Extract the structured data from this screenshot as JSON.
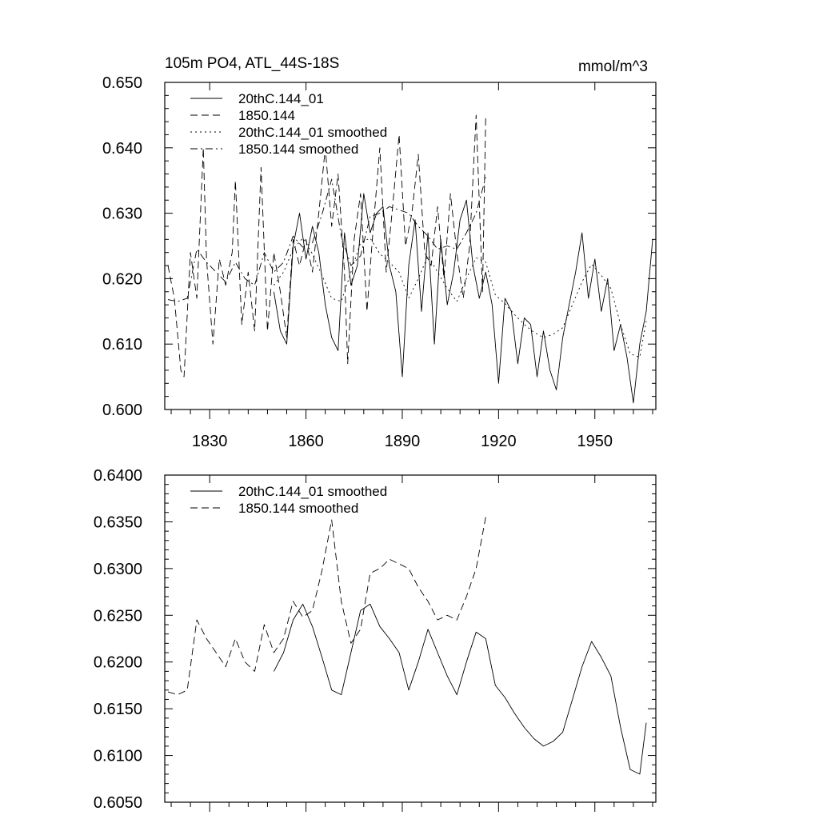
{
  "chart_data": [
    {
      "type": "line",
      "title": "105m PO4, ATL_44S-18S",
      "units_label": "mmol/m^3",
      "xlabel": "",
      "ylabel": "",
      "xlim": [
        1816,
        1969
      ],
      "ylim": [
        0.6,
        0.65
      ],
      "x_ticks": [
        1830,
        1860,
        1890,
        1920,
        1950
      ],
      "y_ticks": [
        0.6,
        0.61,
        0.62,
        0.63,
        0.64,
        0.65
      ],
      "y_tick_labels": [
        "0.600",
        "0.610",
        "0.620",
        "0.630",
        "0.640",
        "0.650"
      ],
      "legend": [
        "20thC.144_01",
        "1850.144",
        "20thC.144_01 smoothed",
        "1850.144 smoothed"
      ],
      "legend_position": "top-left",
      "series": [
        {
          "name": "20thC.144_01",
          "style": "solid",
          "x": [
            1850,
            1852,
            1854,
            1856,
            1858,
            1860,
            1862,
            1864,
            1866,
            1868,
            1870,
            1872,
            1874,
            1876,
            1878,
            1880,
            1882,
            1884,
            1886,
            1888,
            1890,
            1892,
            1894,
            1896,
            1898,
            1900,
            1902,
            1904,
            1906,
            1908,
            1910,
            1912,
            1914,
            1916,
            1918,
            1920,
            1922,
            1924,
            1926,
            1928,
            1930,
            1932,
            1934,
            1936,
            1938,
            1940,
            1942,
            1944,
            1946,
            1948,
            1950,
            1952,
            1954,
            1956,
            1958,
            1960,
            1962,
            1964,
            1966,
            1968
          ],
          "values": [
            0.618,
            0.612,
            0.61,
            0.625,
            0.63,
            0.623,
            0.628,
            0.624,
            0.616,
            0.611,
            0.609,
            0.627,
            0.619,
            0.622,
            0.633,
            0.627,
            0.63,
            0.631,
            0.622,
            0.618,
            0.605,
            0.622,
            0.629,
            0.615,
            0.627,
            0.61,
            0.626,
            0.616,
            0.621,
            0.629,
            0.632,
            0.622,
            0.617,
            0.621,
            0.616,
            0.604,
            0.617,
            0.615,
            0.607,
            0.614,
            0.613,
            0.605,
            0.612,
            0.606,
            0.603,
            0.611,
            0.616,
            0.621,
            0.627,
            0.617,
            0.623,
            0.615,
            0.62,
            0.609,
            0.613,
            0.608,
            0.601,
            0.61,
            0.615,
            0.626
          ]
        },
        {
          "name": "1850.144",
          "style": "dashed",
          "x": [
            1817,
            1819,
            1821,
            1822,
            1824,
            1826,
            1828,
            1829,
            1831,
            1833,
            1835,
            1837,
            1838,
            1840,
            1842,
            1844,
            1846,
            1848,
            1850,
            1852,
            1854,
            1856,
            1858,
            1860,
            1862,
            1864,
            1866,
            1868,
            1870,
            1872,
            1873,
            1875,
            1877,
            1879,
            1881,
            1883,
            1885,
            1887,
            1889,
            1891,
            1893,
            1895,
            1897,
            1899,
            1901,
            1903,
            1905,
            1907,
            1909,
            1911,
            1913,
            1915,
            1916
          ],
          "values": [
            0.622,
            0.617,
            0.606,
            0.605,
            0.624,
            0.617,
            0.64,
            0.623,
            0.61,
            0.623,
            0.619,
            0.624,
            0.635,
            0.613,
            0.621,
            0.612,
            0.637,
            0.612,
            0.624,
            0.618,
            0.611,
            0.626,
            0.622,
            0.626,
            0.621,
            0.63,
            0.64,
            0.628,
            0.636,
            0.621,
            0.607,
            0.626,
            0.633,
            0.615,
            0.628,
            0.64,
            0.621,
            0.631,
            0.642,
            0.625,
            0.63,
            0.639,
            0.624,
            0.622,
            0.631,
            0.62,
            0.633,
            0.624,
            0.617,
            0.625,
            0.645,
            0.618,
            0.645
          ]
        },
        {
          "name": "20thC.144_01 smoothed",
          "style": "dotted",
          "x": [
            1850,
            1853,
            1856,
            1859,
            1862,
            1865,
            1868,
            1871,
            1874,
            1877,
            1880,
            1883,
            1886,
            1889,
            1892,
            1895,
            1898,
            1901,
            1904,
            1907,
            1910,
            1913,
            1916,
            1919,
            1922,
            1925,
            1928,
            1931,
            1934,
            1937,
            1940,
            1943,
            1946,
            1949,
            1952,
            1955,
            1958,
            1961,
            1964,
            1966
          ],
          "values": [
            0.619,
            0.621,
            0.6245,
            0.6262,
            0.6238,
            0.6205,
            0.617,
            0.6165,
            0.621,
            0.6255,
            0.6262,
            0.6238,
            0.6225,
            0.621,
            0.617,
            0.62,
            0.6235,
            0.621,
            0.6185,
            0.6165,
            0.62,
            0.6232,
            0.6225,
            0.6175,
            0.6162,
            0.6145,
            0.613,
            0.6118,
            0.611,
            0.6115,
            0.6125,
            0.616,
            0.6195,
            0.6222,
            0.6205,
            0.6185,
            0.613,
            0.6085,
            0.608,
            0.6135
          ]
        },
        {
          "name": "1850.144 smoothed",
          "style": "dash-dot",
          "x": [
            1817,
            1820,
            1823,
            1826,
            1829,
            1832,
            1835,
            1838,
            1841,
            1844,
            1847,
            1850,
            1853,
            1856,
            1859,
            1862,
            1865,
            1868,
            1871,
            1874,
            1877,
            1880,
            1883,
            1886,
            1889,
            1892,
            1895,
            1898,
            1901,
            1904,
            1907,
            1910,
            1913,
            1916
          ],
          "values": [
            0.6168,
            0.6165,
            0.617,
            0.6245,
            0.6225,
            0.621,
            0.6195,
            0.6225,
            0.62,
            0.619,
            0.624,
            0.621,
            0.6225,
            0.6265,
            0.6248,
            0.6255,
            0.6298,
            0.6352,
            0.6265,
            0.622,
            0.6235,
            0.6295,
            0.63,
            0.631,
            0.6305,
            0.63,
            0.628,
            0.6265,
            0.6245,
            0.625,
            0.6245,
            0.627,
            0.63,
            0.6355
          ]
        }
      ]
    },
    {
      "type": "line",
      "title": "",
      "xlabel": "",
      "ylabel": "",
      "xlim": [
        1816,
        1969
      ],
      "ylim": [
        0.605,
        0.64
      ],
      "x_ticks": [
        1830,
        1860,
        1890,
        1920,
        1950
      ],
      "y_ticks": [
        0.605,
        0.61,
        0.615,
        0.62,
        0.625,
        0.63,
        0.635,
        0.64
      ],
      "y_tick_labels": [
        "0.6050",
        "0.6100",
        "0.6150",
        "0.6200",
        "0.6250",
        "0.6300",
        "0.6350",
        "0.6400"
      ],
      "legend": [
        "20thC.144_01 smoothed",
        "1850.144 smoothed"
      ],
      "legend_position": "top-left",
      "series": [
        {
          "name": "20thC.144_01 smoothed",
          "style": "solid",
          "x": [
            1850,
            1853,
            1856,
            1859,
            1862,
            1865,
            1868,
            1871,
            1874,
            1877,
            1880,
            1883,
            1886,
            1889,
            1892,
            1895,
            1898,
            1901,
            1904,
            1907,
            1910,
            1913,
            1916,
            1919,
            1922,
            1925,
            1928,
            1931,
            1934,
            1937,
            1940,
            1943,
            1946,
            1949,
            1952,
            1955,
            1958,
            1961,
            1964,
            1966
          ],
          "values": [
            0.619,
            0.621,
            0.6245,
            0.6262,
            0.6238,
            0.6205,
            0.617,
            0.6165,
            0.621,
            0.6255,
            0.6262,
            0.6238,
            0.6225,
            0.621,
            0.617,
            0.62,
            0.6235,
            0.621,
            0.6185,
            0.6165,
            0.62,
            0.6232,
            0.6225,
            0.6175,
            0.6162,
            0.6145,
            0.613,
            0.6118,
            0.611,
            0.6115,
            0.6125,
            0.616,
            0.6195,
            0.6222,
            0.6205,
            0.6185,
            0.613,
            0.6085,
            0.608,
            0.6135
          ]
        },
        {
          "name": "1850.144 smoothed",
          "style": "dashed",
          "x": [
            1817,
            1820,
            1823,
            1826,
            1829,
            1832,
            1835,
            1838,
            1841,
            1844,
            1847,
            1850,
            1853,
            1856,
            1859,
            1862,
            1865,
            1868,
            1871,
            1874,
            1877,
            1880,
            1883,
            1886,
            1889,
            1892,
            1895,
            1898,
            1901,
            1904,
            1907,
            1910,
            1913,
            1916
          ],
          "values": [
            0.6168,
            0.6165,
            0.617,
            0.6245,
            0.6225,
            0.621,
            0.6195,
            0.6225,
            0.62,
            0.619,
            0.624,
            0.621,
            0.6225,
            0.6265,
            0.6248,
            0.6255,
            0.6298,
            0.6352,
            0.6265,
            0.622,
            0.6235,
            0.6295,
            0.63,
            0.631,
            0.6305,
            0.63,
            0.628,
            0.6265,
            0.6245,
            0.625,
            0.6245,
            0.627,
            0.63,
            0.6355
          ]
        }
      ]
    }
  ]
}
